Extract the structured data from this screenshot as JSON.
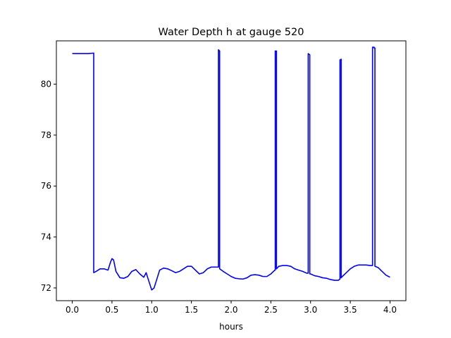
{
  "chart_data": {
    "type": "line",
    "title": "Water Depth h at gauge 520",
    "xlabel": "hours",
    "ylabel": "",
    "xlim": [
      -0.2,
      4.2
    ],
    "ylim": [
      71.5,
      81.7
    ],
    "xticks": [
      0.0,
      0.5,
      1.0,
      1.5,
      2.0,
      2.5,
      3.0,
      3.5,
      4.0
    ],
    "xtick_labels": [
      "0.0",
      "0.5",
      "1.0",
      "1.5",
      "2.0",
      "2.5",
      "3.0",
      "3.5",
      "4.0"
    ],
    "yticks": [
      72,
      74,
      76,
      78,
      80
    ],
    "ytick_labels": [
      "72",
      "74",
      "76",
      "78",
      "80"
    ],
    "grid": false,
    "series": [
      {
        "color": "#0000ff",
        "x": [
          0.0,
          0.1,
          0.2,
          0.27,
          0.27,
          0.3,
          0.35,
          0.4,
          0.45,
          0.48,
          0.5,
          0.52,
          0.55,
          0.6,
          0.65,
          0.7,
          0.75,
          0.8,
          0.85,
          0.9,
          0.93,
          0.95,
          1.0,
          1.03,
          1.06,
          1.1,
          1.15,
          1.2,
          1.25,
          1.3,
          1.35,
          1.4,
          1.45,
          1.5,
          1.55,
          1.6,
          1.65,
          1.7,
          1.75,
          1.8,
          1.84,
          1.84,
          1.855,
          1.855,
          1.9,
          1.95,
          2.0,
          2.05,
          2.1,
          2.15,
          2.2,
          2.25,
          2.3,
          2.35,
          2.4,
          2.45,
          2.5,
          2.55,
          2.555,
          2.555,
          2.57,
          2.57,
          2.6,
          2.65,
          2.7,
          2.75,
          2.8,
          2.85,
          2.9,
          2.95,
          2.97,
          2.97,
          2.99,
          2.99,
          3.0,
          3.05,
          3.1,
          3.15,
          3.2,
          3.25,
          3.3,
          3.35,
          3.37,
          3.37,
          3.385,
          3.385,
          3.4,
          3.45,
          3.5,
          3.55,
          3.6,
          3.65,
          3.7,
          3.75,
          3.78,
          3.78,
          3.8,
          3.8,
          3.81,
          3.81,
          3.85,
          3.9,
          3.95,
          4.0
        ],
        "y": [
          81.2,
          81.2,
          81.2,
          81.22,
          72.6,
          72.65,
          72.75,
          72.75,
          72.7,
          73.0,
          73.15,
          73.1,
          72.65,
          72.4,
          72.38,
          72.45,
          72.65,
          72.72,
          72.55,
          72.42,
          72.6,
          72.4,
          71.92,
          72.0,
          72.3,
          72.7,
          72.78,
          72.75,
          72.68,
          72.6,
          72.65,
          72.75,
          72.85,
          72.85,
          72.7,
          72.55,
          72.6,
          72.75,
          72.82,
          72.82,
          72.82,
          81.35,
          81.3,
          72.75,
          72.65,
          72.55,
          72.45,
          72.38,
          72.36,
          72.35,
          72.4,
          72.5,
          72.52,
          72.5,
          72.45,
          72.45,
          72.55,
          72.7,
          72.7,
          81.3,
          81.3,
          72.75,
          72.85,
          72.88,
          72.88,
          72.85,
          72.75,
          72.7,
          72.65,
          72.58,
          72.58,
          81.2,
          81.15,
          72.55,
          72.55,
          72.48,
          72.45,
          72.4,
          72.38,
          72.33,
          72.3,
          72.3,
          72.35,
          80.95,
          80.98,
          72.4,
          72.45,
          72.6,
          72.75,
          72.85,
          72.9,
          72.9,
          72.9,
          72.88,
          72.88,
          81.45,
          81.45,
          81.42,
          81.42,
          72.85,
          72.8,
          72.65,
          72.5,
          72.42
        ]
      }
    ]
  }
}
